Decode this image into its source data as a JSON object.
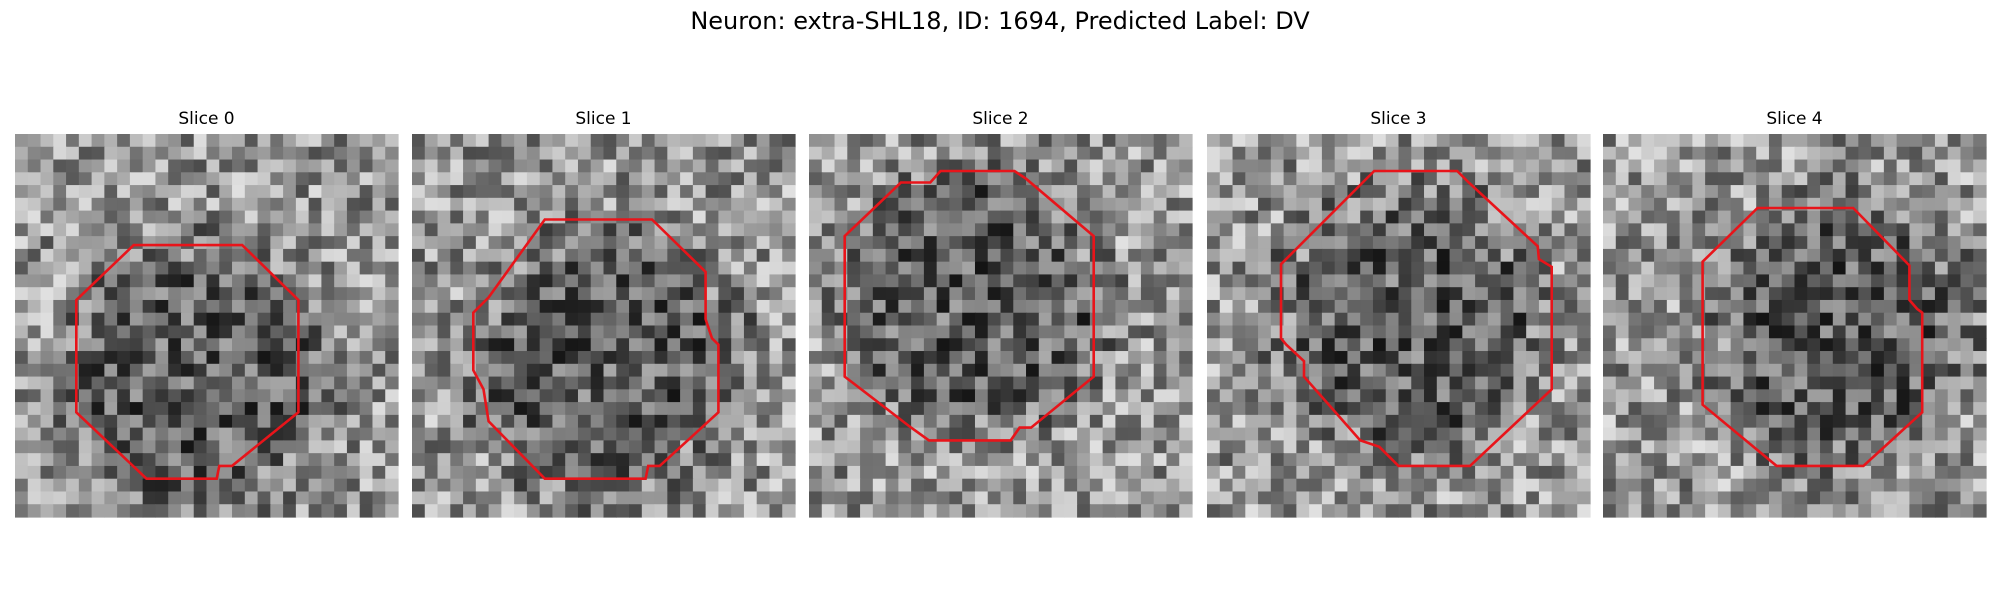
{
  "title": "Neuron: extra-SHL18, ID: 1694, Predicted Label: DV",
  "panels": [
    {
      "title": "Slice 0"
    },
    {
      "title": "Slice 1"
    },
    {
      "title": "Slice 2"
    },
    {
      "title": "Slice 3"
    },
    {
      "title": "Slice 4"
    }
  ]
}
